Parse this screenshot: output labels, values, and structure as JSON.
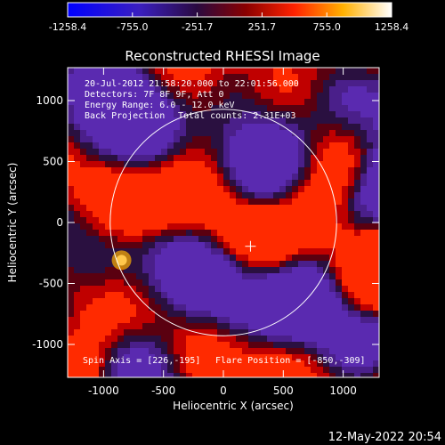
{
  "chart_data": {
    "type": "heatmap",
    "title": "Reconstructed RHESSI Image",
    "xlabel": "Heliocentric X (arcsec)",
    "ylabel": "Heliocentric Y (arcsec)",
    "xlim": [
      -1300,
      1300
    ],
    "ylim": [
      -1270,
      1270
    ],
    "x_ticks": [
      -1000,
      -500,
      0,
      500,
      1000
    ],
    "y_ticks": [
      -1000,
      -500,
      0,
      500,
      1000
    ],
    "x_tick_labels": [
      "-1000",
      "-500",
      "0",
      "500",
      "1000"
    ],
    "y_tick_labels": [
      "-1000",
      "-500",
      "0",
      "500",
      "1000"
    ],
    "colorbar": {
      "min": -1258.4,
      "max": 1258.4,
      "ticks": [
        -1258.4,
        -755.0,
        -251.7,
        251.7,
        755.0,
        1258.4
      ],
      "tick_labels": [
        "-1258.4",
        "-755.0",
        "-251.7",
        "251.7",
        "755.0",
        "1258.4"
      ],
      "colors": [
        "#0000ff",
        "#4b0082",
        "#000000",
        "#ff0000",
        "#ffcc00",
        "#ffffff"
      ]
    },
    "annotations": {
      "time_range": "20-Jul-2012 21:58:20.000 to 22:01:56.000",
      "detectors": "Detectors: 7F 8F 9F, Att 0",
      "energy": "Energy Range: 6.0 - 12.0 keV",
      "method": "Back Projection",
      "counts": "Total counts: 2.31E+03",
      "spin_axis": "Spin Axis = [226,-195]",
      "flare_position": "Flare Position = [-850,-309]"
    },
    "solar_disk": {
      "center": [
        0,
        0
      ],
      "radius_arcsec": 945
    },
    "spin_axis_marker": [
      226,
      -195
    ],
    "flare_source": {
      "x": -850,
      "y": -309,
      "value": 1258.4
    }
  },
  "footer": {
    "timestamp": "12-May-2022 20:54"
  }
}
